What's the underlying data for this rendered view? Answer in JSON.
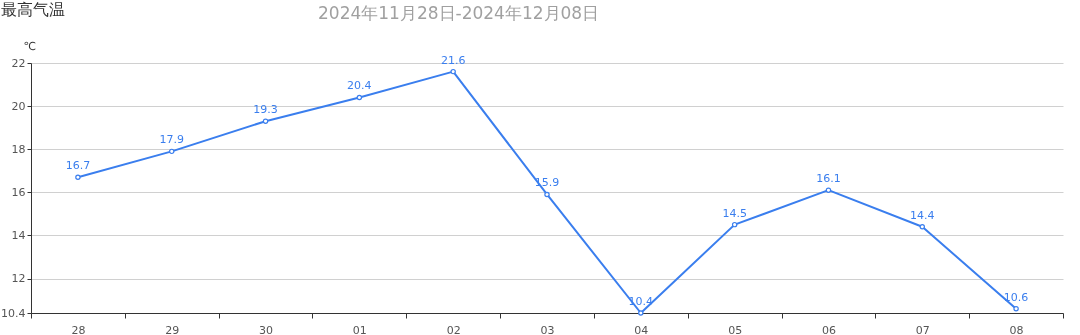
{
  "chart_data": {
    "type": "line",
    "title": "最高气温",
    "subtitle": "2024年11月28日-2024年12月08日",
    "ylabel": "℃",
    "categories": [
      "28",
      "29",
      "30",
      "01",
      "02",
      "03",
      "04",
      "05",
      "06",
      "07",
      "08"
    ],
    "series": [
      {
        "color": "#3a7eee",
        "values": [
          16.7,
          17.9,
          19.3,
          20.4,
          21.6,
          15.9,
          10.4,
          14.5,
          16.1,
          14.4,
          10.6
        ]
      }
    ],
    "ylim": [
      10.4,
      22
    ],
    "yticks": [
      10.4,
      12,
      14,
      16,
      18,
      20,
      22
    ],
    "grid": "y",
    "marker": "circle",
    "line_style": "solid",
    "data_labels": true
  }
}
